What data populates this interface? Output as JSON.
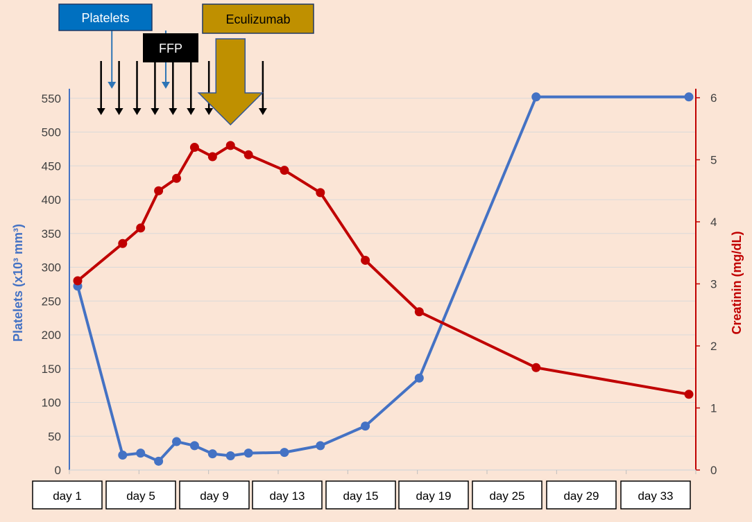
{
  "chart_data": {
    "type": "line",
    "x": [
      "day 1",
      "day 5",
      "day 9",
      "day 13",
      "day 15",
      "day 19",
      "day 25",
      "day 29",
      "day 33"
    ],
    "left_axis": {
      "label": "Platelets (x10³ mm³)",
      "ticks": [
        0,
        50,
        100,
        150,
        200,
        250,
        300,
        350,
        400,
        450,
        500,
        550
      ],
      "range": [
        0,
        560
      ],
      "color": "#4472c4"
    },
    "right_axis": {
      "label": "Creatinin (mg/dL)",
      "ticks": [
        0,
        1,
        2,
        3,
        4,
        5,
        6
      ],
      "range": [
        0,
        6.1
      ],
      "color": "#c00000"
    },
    "series": [
      {
        "name": "Platelets",
        "axis": "left",
        "color": "#4472c4",
        "points": [
          {
            "x": 1,
            "y": 272
          },
          {
            "x": 3.5,
            "y": 22
          },
          {
            "x": 4.5,
            "y": 25
          },
          {
            "x": 5.5,
            "y": 13
          },
          {
            "x": 6.5,
            "y": 42
          },
          {
            "x": 7.5,
            "y": 36
          },
          {
            "x": 8.5,
            "y": 24
          },
          {
            "x": 9.5,
            "y": 21
          },
          {
            "x": 10.5,
            "y": 25
          },
          {
            "x": 12.5,
            "y": 26
          },
          {
            "x": 14.5,
            "y": 36
          },
          {
            "x": 17,
            "y": 65
          },
          {
            "x": 20,
            "y": 136
          },
          {
            "x": 26.5,
            "y": 552
          },
          {
            "x": 35,
            "y": 552
          }
        ]
      },
      {
        "name": "Creatinin",
        "axis": "right",
        "color": "#c00000",
        "points": [
          {
            "x": 1,
            "y": 3.05
          },
          {
            "x": 3.5,
            "y": 3.65
          },
          {
            "x": 4.5,
            "y": 3.9
          },
          {
            "x": 5.5,
            "y": 4.5
          },
          {
            "x": 6.5,
            "y": 4.7
          },
          {
            "x": 7.5,
            "y": 5.2
          },
          {
            "x": 8.5,
            "y": 5.05
          },
          {
            "x": 9.5,
            "y": 5.23
          },
          {
            "x": 10.5,
            "y": 5.08
          },
          {
            "x": 12.5,
            "y": 4.83
          },
          {
            "x": 14.5,
            "y": 4.47
          },
          {
            "x": 17,
            "y": 3.38
          },
          {
            "x": 20,
            "y": 2.55
          },
          {
            "x": 26.5,
            "y": 1.65
          },
          {
            "x": 35,
            "y": 1.22
          }
        ]
      }
    ],
    "x_range": [
      1,
      35
    ],
    "grid": true,
    "annotations": {
      "platelets_label": "Platelets",
      "ffp_label": "FFP",
      "eculizumab_label": "Eculizumab",
      "platelet_transfusion_days": [
        2,
        5
      ],
      "ffp_days": [
        2,
        3,
        4,
        5,
        6,
        7,
        8,
        9,
        11
      ],
      "eculizumab_day": 9.5
    }
  }
}
